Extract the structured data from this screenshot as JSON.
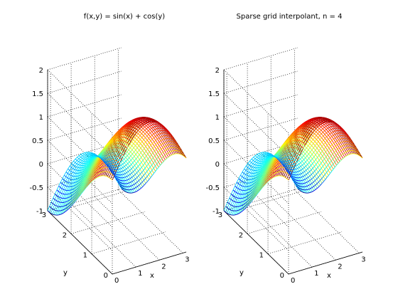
{
  "figure": {
    "background": "#ffffff",
    "colormap": "jet"
  },
  "chart_data": [
    {
      "type": "surface-mesh",
      "title": "f(x,y) = sin(x) + cos(y)",
      "function": "sin(x) + cos(y)",
      "xlabel": "x",
      "ylabel": "y",
      "zlabel": "",
      "xlim": [
        0,
        3.1416
      ],
      "ylim": [
        0,
        3.1416
      ],
      "zlim": [
        -1,
        2
      ],
      "xticks": [
        0,
        1,
        2,
        3
      ],
      "yticks": [
        0,
        1,
        2,
        3
      ],
      "zticks": [
        -1,
        -0.5,
        0,
        0.5,
        1,
        1.5,
        2
      ],
      "xtick_labels": [
        "0",
        "1",
        "2",
        "3"
      ],
      "ytick_labels": [
        "0",
        "1",
        "2",
        "3"
      ],
      "ztick_labels": [
        "-1",
        "-0.5",
        "0",
        "0.5",
        "1",
        "1.5",
        "2"
      ],
      "grid": true,
      "mesh_resolution": 40,
      "clim": [
        -1,
        2
      ]
    },
    {
      "type": "surface-mesh",
      "title": "Sparse grid interpolant, n = 4",
      "function": "sin(x) + cos(y)",
      "xlabel": "x",
      "ylabel": "y",
      "zlabel": "",
      "xlim": [
        0,
        3.1416
      ],
      "ylim": [
        0,
        3.1416
      ],
      "zlim": [
        -1,
        2
      ],
      "xticks": [
        0,
        1,
        2,
        3
      ],
      "yticks": [
        0,
        1,
        2,
        3
      ],
      "zticks": [
        -1,
        -0.5,
        0,
        0.5,
        1,
        1.5,
        2
      ],
      "xtick_labels": [
        "0",
        "1",
        "2",
        "3"
      ],
      "ytick_labels": [
        "0",
        "1",
        "2",
        "3"
      ],
      "ztick_labels": [
        "-1",
        "-0.5",
        "0",
        "0.5",
        "1",
        "1.5",
        "2"
      ],
      "grid": true,
      "mesh_resolution": 40,
      "clim": [
        -1,
        2
      ]
    }
  ]
}
